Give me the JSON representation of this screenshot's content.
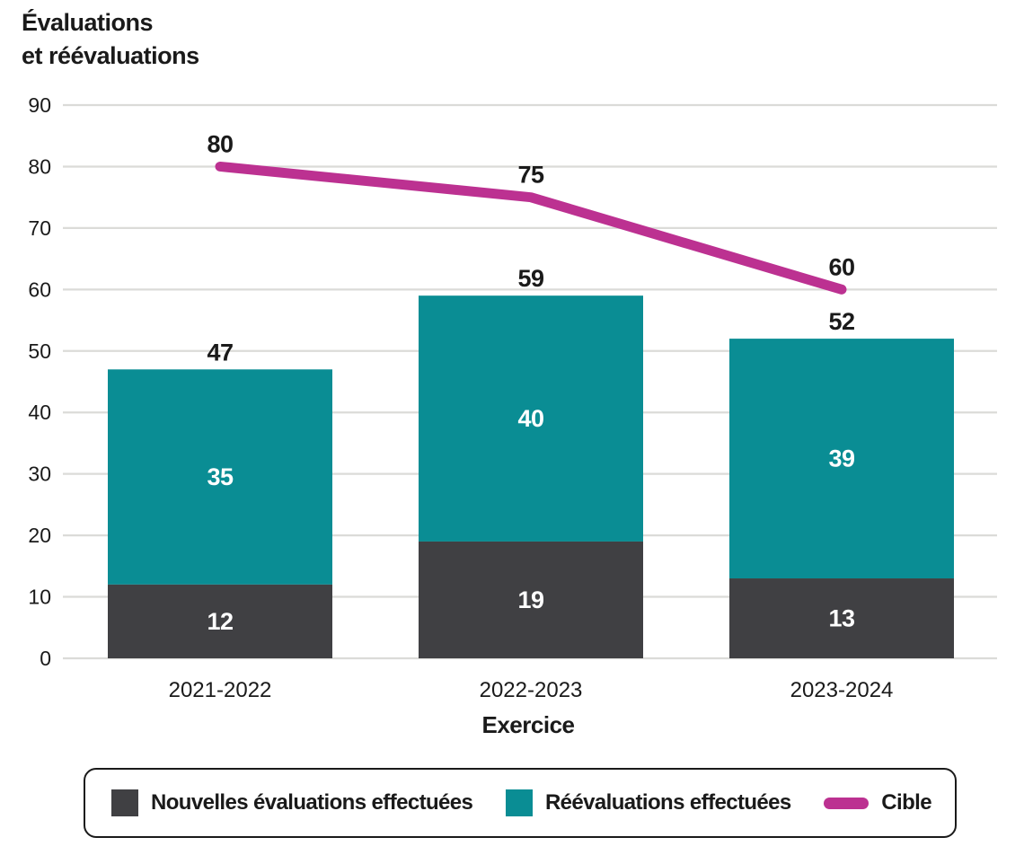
{
  "title": {
    "line1": "Évaluations",
    "line2": "et réévaluations"
  },
  "chart_data": {
    "type": "bar",
    "subtype": "stacked-bars-with-target-line",
    "categories": [
      "2021-2022",
      "2022-2023",
      "2023-2024"
    ],
    "series": [
      {
        "name": "Nouvelles évaluations effectuées",
        "type": "bar",
        "color": "#404043",
        "values": [
          12,
          19,
          13
        ]
      },
      {
        "name": "Réévaluations effectuées",
        "type": "bar",
        "color": "#0a8d94",
        "values": [
          35,
          40,
          39
        ]
      },
      {
        "name": "Cible",
        "type": "line",
        "color": "#bc3191",
        "values": [
          80,
          75,
          60
        ]
      }
    ],
    "stack_totals": [
      47,
      59,
      52
    ],
    "title": "Évaluations et réévaluations",
    "xlabel": "Exercice",
    "ylabel": "Évaluations et réévaluations",
    "ylim": [
      0,
      90
    ],
    "yticks": [
      0,
      10,
      20,
      30,
      40,
      50,
      60,
      70,
      80,
      90
    ],
    "grid": true,
    "legend_position": "bottom"
  },
  "legend": {
    "items": [
      {
        "label": "Nouvelles évaluations effectuées",
        "swatch": "square",
        "color": "#404043"
      },
      {
        "label": "Réévaluations effectuées",
        "swatch": "square",
        "color": "#0a8d94"
      },
      {
        "label": "Cible",
        "swatch": "pill",
        "color": "#bc3191"
      }
    ]
  },
  "colors": {
    "bar_dark": "#404043",
    "bar_teal": "#0a8d94",
    "target_line": "#bc3191",
    "grid": "#dbdbd8",
    "text": "#1a1a1a",
    "background": "#ffffff"
  }
}
